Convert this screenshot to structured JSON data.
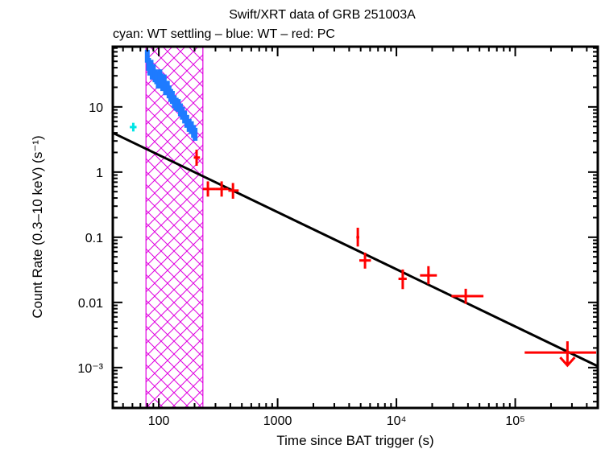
{
  "chart_data": {
    "type": "scatter",
    "title": "Swift/XRT data of GRB 251003A",
    "subtitle": "cyan: WT settling – blue: WT – red: PC",
    "xlabel": "Time since BAT trigger (s)",
    "ylabel": "Count Rate (0.3–10 keV) (s⁻¹)",
    "xscale": "log",
    "yscale": "log",
    "xlim": [
      41,
      495000
    ],
    "ylim": [
      0.00024,
      84
    ],
    "x_ticks": [
      {
        "value": 100,
        "label": "100"
      },
      {
        "value": 1000,
        "label": "1000"
      },
      {
        "value": 10000,
        "label": "10⁴"
      },
      {
        "value": 100000,
        "label": "10⁵"
      }
    ],
    "y_ticks": [
      {
        "value": 10,
        "label": "10"
      },
      {
        "value": 1,
        "label": "1"
      },
      {
        "value": 0.1,
        "label": "0.1"
      },
      {
        "value": 0.01,
        "label": "0.01"
      },
      {
        "value": 0.001,
        "label": "10⁻³"
      }
    ],
    "shaded_region": {
      "x_from": 78,
      "x_to": 235,
      "color": "#e000e0",
      "pattern": "crosshatch"
    },
    "fit_line": {
      "points": [
        [
          41,
          4.0
        ],
        [
          495000,
          0.00105
        ]
      ],
      "color": "#000000"
    },
    "series": [
      {
        "name": "WT settling",
        "color": "#00e5e5",
        "points": [
          {
            "t": 61,
            "t_lo": 57,
            "t_hi": 65,
            "rate": 4.9,
            "rate_lo": 4.2,
            "rate_hi": 5.7
          }
        ]
      },
      {
        "name": "WT",
        "color": "#1e7bff",
        "points": [
          {
            "t": 80,
            "rate": 60
          },
          {
            "t": 82,
            "rate": 45
          },
          {
            "t": 84,
            "rate": 38
          },
          {
            "t": 86,
            "rate": 42
          },
          {
            "t": 88,
            "rate": 33
          },
          {
            "t": 90,
            "rate": 36
          },
          {
            "t": 93,
            "rate": 30
          },
          {
            "t": 96,
            "rate": 28
          },
          {
            "t": 99,
            "rate": 24
          },
          {
            "t": 102,
            "rate": 30
          },
          {
            "t": 105,
            "rate": 26
          },
          {
            "t": 108,
            "rate": 22
          },
          {
            "t": 111,
            "rate": 25
          },
          {
            "t": 114,
            "rate": 19
          },
          {
            "t": 118,
            "rate": 20
          },
          {
            "t": 122,
            "rate": 17
          },
          {
            "t": 126,
            "rate": 15
          },
          {
            "t": 130,
            "rate": 14
          },
          {
            "t": 135,
            "rate": 12
          },
          {
            "t": 140,
            "rate": 11
          },
          {
            "t": 146,
            "rate": 10.5
          },
          {
            "t": 152,
            "rate": 9
          },
          {
            "t": 158,
            "rate": 8
          },
          {
            "t": 165,
            "rate": 7
          },
          {
            "t": 172,
            "rate": 6
          },
          {
            "t": 180,
            "rate": 5.2
          },
          {
            "t": 188,
            "rate": 4.8
          },
          {
            "t": 196,
            "rate": 4.2
          },
          {
            "t": 202,
            "rate": 3.8
          }
        ]
      },
      {
        "name": "PC",
        "color": "#ff0000",
        "points": [
          {
            "t": 208,
            "t_lo": 197,
            "t_hi": 222,
            "rate": 1.67,
            "rate_lo": 1.25,
            "rate_hi": 2.2,
            "upper_limit": false
          },
          {
            "t": 259,
            "t_lo": 235,
            "t_hi": 300,
            "rate": 0.55,
            "rate_lo": 0.42,
            "rate_hi": 0.72,
            "upper_limit": false
          },
          {
            "t": 338,
            "t_lo": 300,
            "t_hi": 385,
            "rate": 0.55,
            "rate_lo": 0.42,
            "rate_hi": 0.72,
            "upper_limit": false
          },
          {
            "t": 421,
            "t_lo": 385,
            "t_hi": 470,
            "rate": 0.52,
            "rate_lo": 0.39,
            "rate_hi": 0.68,
            "upper_limit": false
          },
          {
            "t": 4730,
            "t_lo": 4600,
            "t_hi": 4870,
            "rate": 0.1,
            "rate_lo": 0.072,
            "rate_hi": 0.14,
            "upper_limit": false
          },
          {
            "t": 5440,
            "t_lo": 4870,
            "t_hi": 6100,
            "rate": 0.044,
            "rate_lo": 0.033,
            "rate_hi": 0.058,
            "upper_limit": false
          },
          {
            "t": 11300,
            "t_lo": 10400,
            "t_hi": 12200,
            "rate": 0.023,
            "rate_lo": 0.016,
            "rate_hi": 0.032,
            "upper_limit": false
          },
          {
            "t": 18600,
            "t_lo": 15800,
            "t_hi": 21900,
            "rate": 0.026,
            "rate_lo": 0.019,
            "rate_hi": 0.036,
            "upper_limit": false
          },
          {
            "t": 38300,
            "t_lo": 29000,
            "t_hi": 54000,
            "rate": 0.0125,
            "rate_lo": 0.0095,
            "rate_hi": 0.0162,
            "upper_limit": false
          },
          {
            "t": 275000,
            "t_lo": 120000,
            "t_hi": 480000,
            "rate": 0.0017,
            "rate_lo": 0.0011,
            "rate_hi": 0.0024,
            "upper_limit": true
          }
        ]
      }
    ],
    "grid": false,
    "legend": "top-left subtitle text"
  }
}
